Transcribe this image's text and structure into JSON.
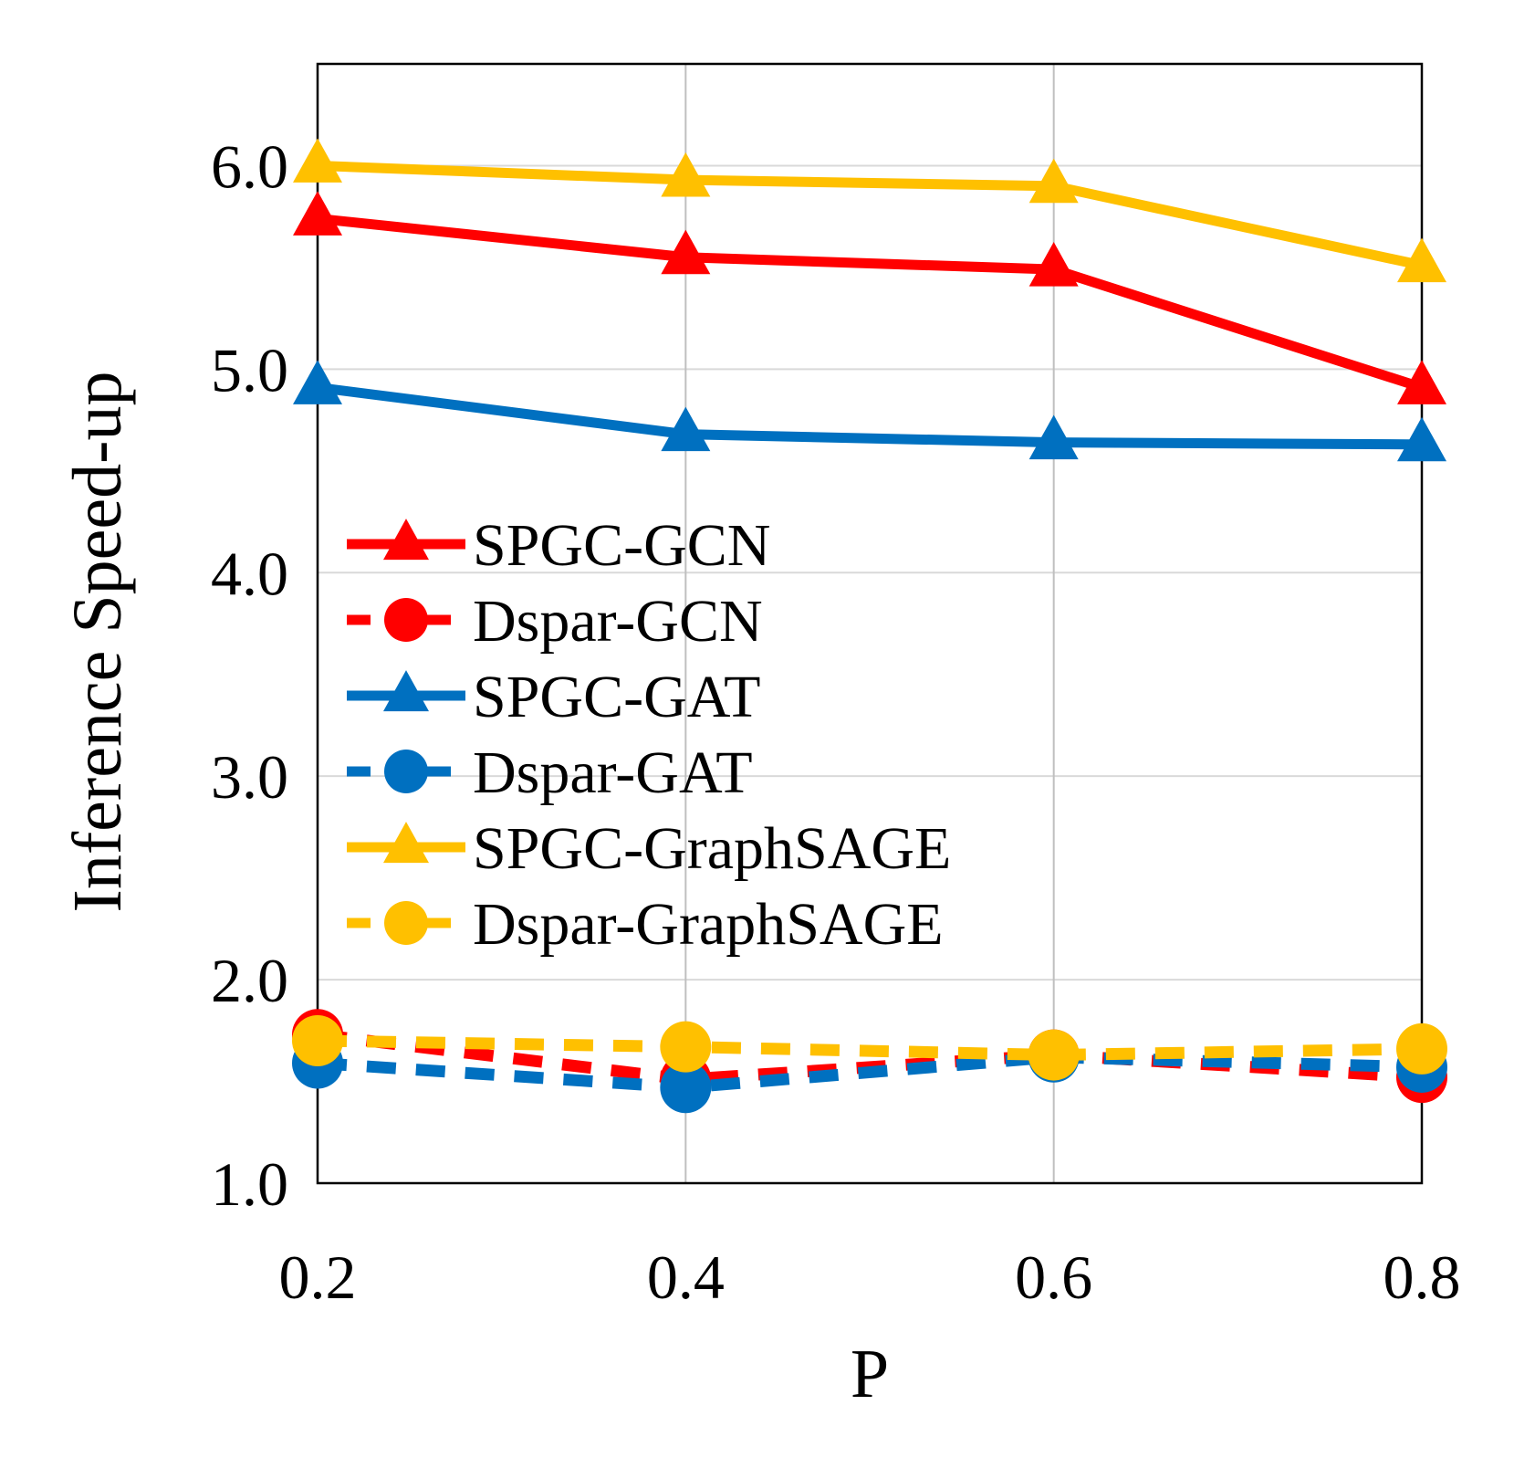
{
  "chart_data": {
    "type": "line",
    "title": "",
    "xlabel": "P",
    "ylabel": "Inference Speed-up",
    "x": [
      0.2,
      0.4,
      0.6,
      0.8
    ],
    "x_tick_labels": [
      "0.2",
      "0.4",
      "0.6",
      "0.8"
    ],
    "xlim": [
      0.2,
      0.8
    ],
    "ylim": [
      1.0,
      6.5
    ],
    "y_ticks": [
      1.0,
      2.0,
      3.0,
      4.0,
      5.0,
      6.0
    ],
    "y_tick_labels": [
      "1.0",
      "2.0",
      "3.0",
      "4.0",
      "5.0",
      "6.0"
    ],
    "grid": true,
    "legend_position": "center-left",
    "series": [
      {
        "name": "SPGC-GCN",
        "values": [
          5.74,
          5.55,
          5.49,
          4.91
        ],
        "color": "#ff0000",
        "marker": "triangle",
        "line": "solid"
      },
      {
        "name": "Dspar-GCN",
        "values": [
          1.73,
          1.51,
          1.63,
          1.52
        ],
        "color": "#ff0000",
        "marker": "circle",
        "line": "dashed"
      },
      {
        "name": "SPGC-GAT",
        "values": [
          4.91,
          4.68,
          4.64,
          4.63
        ],
        "color": "#0070c0",
        "marker": "triangle",
        "line": "solid"
      },
      {
        "name": "Dspar-GAT",
        "values": [
          1.59,
          1.47,
          1.62,
          1.57
        ],
        "color": "#0070c0",
        "marker": "circle",
        "line": "dashed"
      },
      {
        "name": "SPGC-GraphSAGE",
        "values": [
          6.0,
          5.93,
          5.9,
          5.51
        ],
        "color": "#ffc000",
        "marker": "triangle",
        "line": "solid"
      },
      {
        "name": "Dspar-GraphSAGE",
        "values": [
          1.7,
          1.67,
          1.63,
          1.66
        ],
        "color": "#ffc000",
        "marker": "circle",
        "line": "dashed"
      }
    ]
  }
}
